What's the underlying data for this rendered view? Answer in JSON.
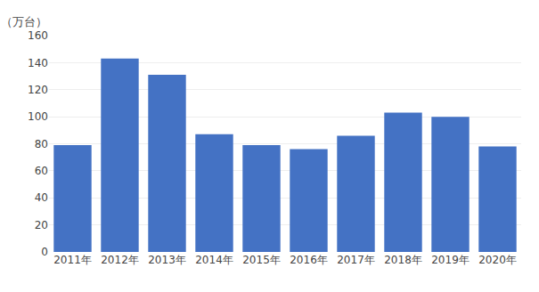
{
  "chart_data": {
    "type": "bar",
    "ylabel": "（万台）",
    "categories": [
      "2011年",
      "2012年",
      "2013年",
      "2014年",
      "2015年",
      "2016年",
      "2017年",
      "2018年",
      "2019年",
      "2020年"
    ],
    "values": [
      79,
      143,
      131,
      87,
      79,
      76,
      86,
      103,
      100,
      78
    ],
    "color": "#4472C4",
    "ylim": [
      0,
      160
    ],
    "yticks": [
      0,
      20,
      40,
      60,
      80,
      100,
      120,
      140,
      160
    ],
    "grid": true
  }
}
